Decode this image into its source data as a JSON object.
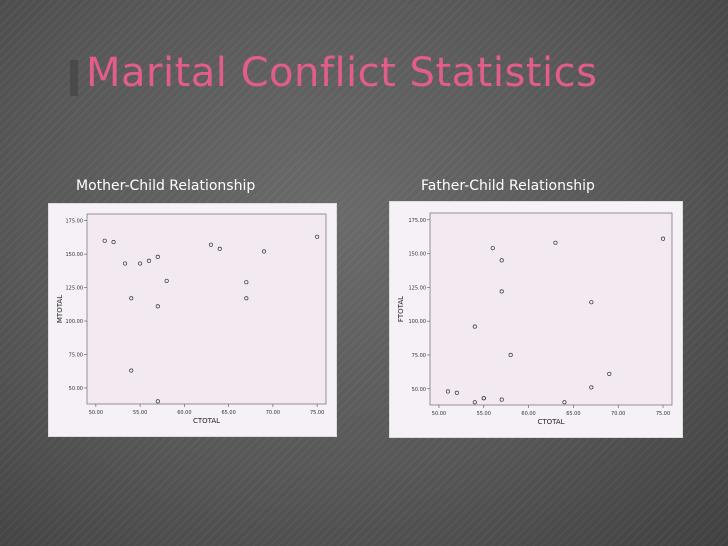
{
  "slide": {
    "title": "Marital Conflict Statistics",
    "heading_left": "Mother-Child Relationship",
    "heading_right": "Father-Child Relationship",
    "accent_color": "#e35d8c"
  },
  "chart_data": [
    {
      "type": "scatter",
      "xlabel": "CTOTAL",
      "ylabel": "MTOTAL",
      "xlim": [
        49,
        76
      ],
      "ylim": [
        38,
        180
      ],
      "xticks": [
        "50.00",
        "55.00",
        "60.00",
        "65.00",
        "70.00",
        "75.00"
      ],
      "yticks": [
        "50.00",
        "75.00",
        "100.00",
        "125.00",
        "150.00",
        "175.00"
      ],
      "x": [
        51,
        52,
        53.3,
        54,
        54,
        55,
        56,
        57,
        57,
        57,
        58,
        63,
        64,
        67,
        67,
        69,
        75
      ],
      "y": [
        160,
        159,
        143,
        117,
        63,
        143,
        145,
        148,
        111,
        40,
        130,
        157,
        154,
        129,
        117,
        152,
        163
      ]
    },
    {
      "type": "scatter",
      "xlabel": "CTOTAL",
      "ylabel": "FTOTAL",
      "xlim": [
        49,
        76
      ],
      "ylim": [
        38,
        180
      ],
      "xticks": [
        "50.00",
        "55.00",
        "60.00",
        "65.00",
        "70.00",
        "75.00"
      ],
      "yticks": [
        "50.00",
        "75.00",
        "100.00",
        "125.00",
        "150.00",
        "175.00"
      ],
      "x": [
        51,
        52,
        54,
        55,
        55,
        54,
        56,
        57,
        57,
        57,
        58,
        63,
        64,
        67,
        67,
        69,
        75
      ],
      "y": [
        48,
        47,
        40,
        43,
        43,
        96,
        154,
        145,
        122,
        42,
        75,
        158,
        40,
        114,
        51,
        61,
        161
      ]
    }
  ]
}
